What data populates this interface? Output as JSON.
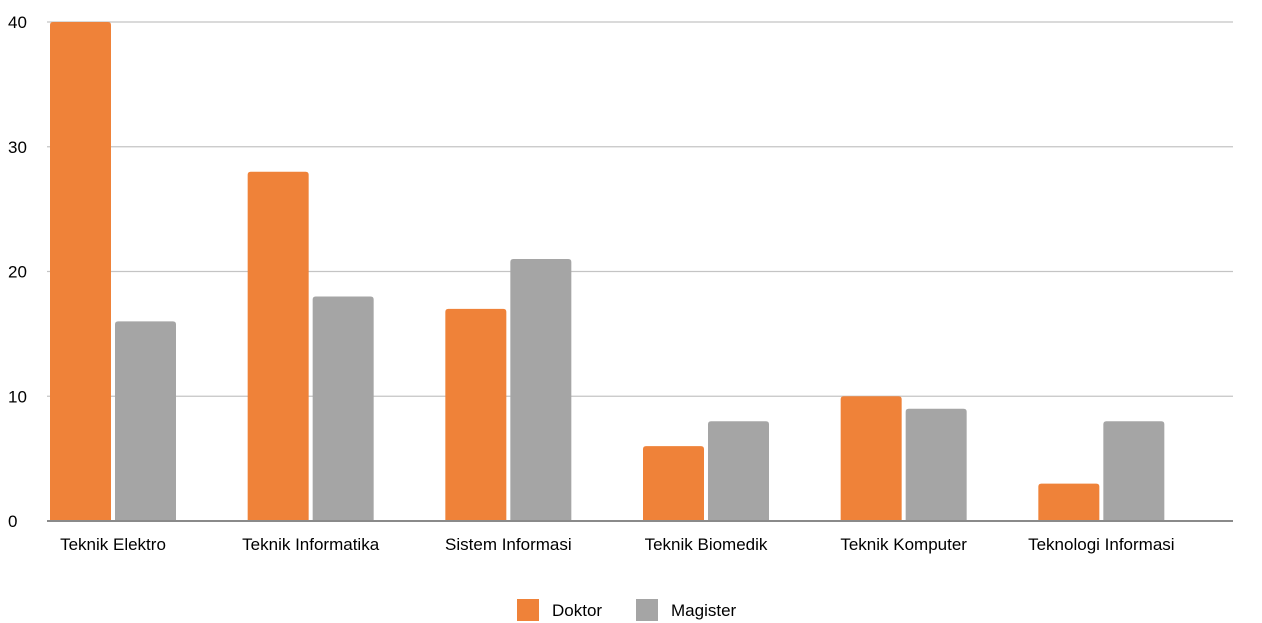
{
  "chart_data": {
    "type": "bar",
    "title": "",
    "xlabel": "",
    "ylabel": "",
    "categories": [
      "Teknik Elektro",
      "Teknik Informatika",
      "Sistem Informasi",
      "Teknik Biomedik",
      "Teknik Komputer",
      "Teknologi Informasi"
    ],
    "series": [
      {
        "name": "Doktor",
        "color": "#ef8239",
        "values": [
          40,
          28,
          17,
          6,
          10,
          3
        ]
      },
      {
        "name": "Magister",
        "color": "#a5a5a5",
        "values": [
          16,
          18,
          21,
          8,
          9,
          8
        ]
      }
    ],
    "ylim": [
      0,
      40
    ],
    "yticks": [
      0,
      10,
      20,
      30,
      40
    ],
    "grid": true,
    "legend_position": "bottom"
  }
}
